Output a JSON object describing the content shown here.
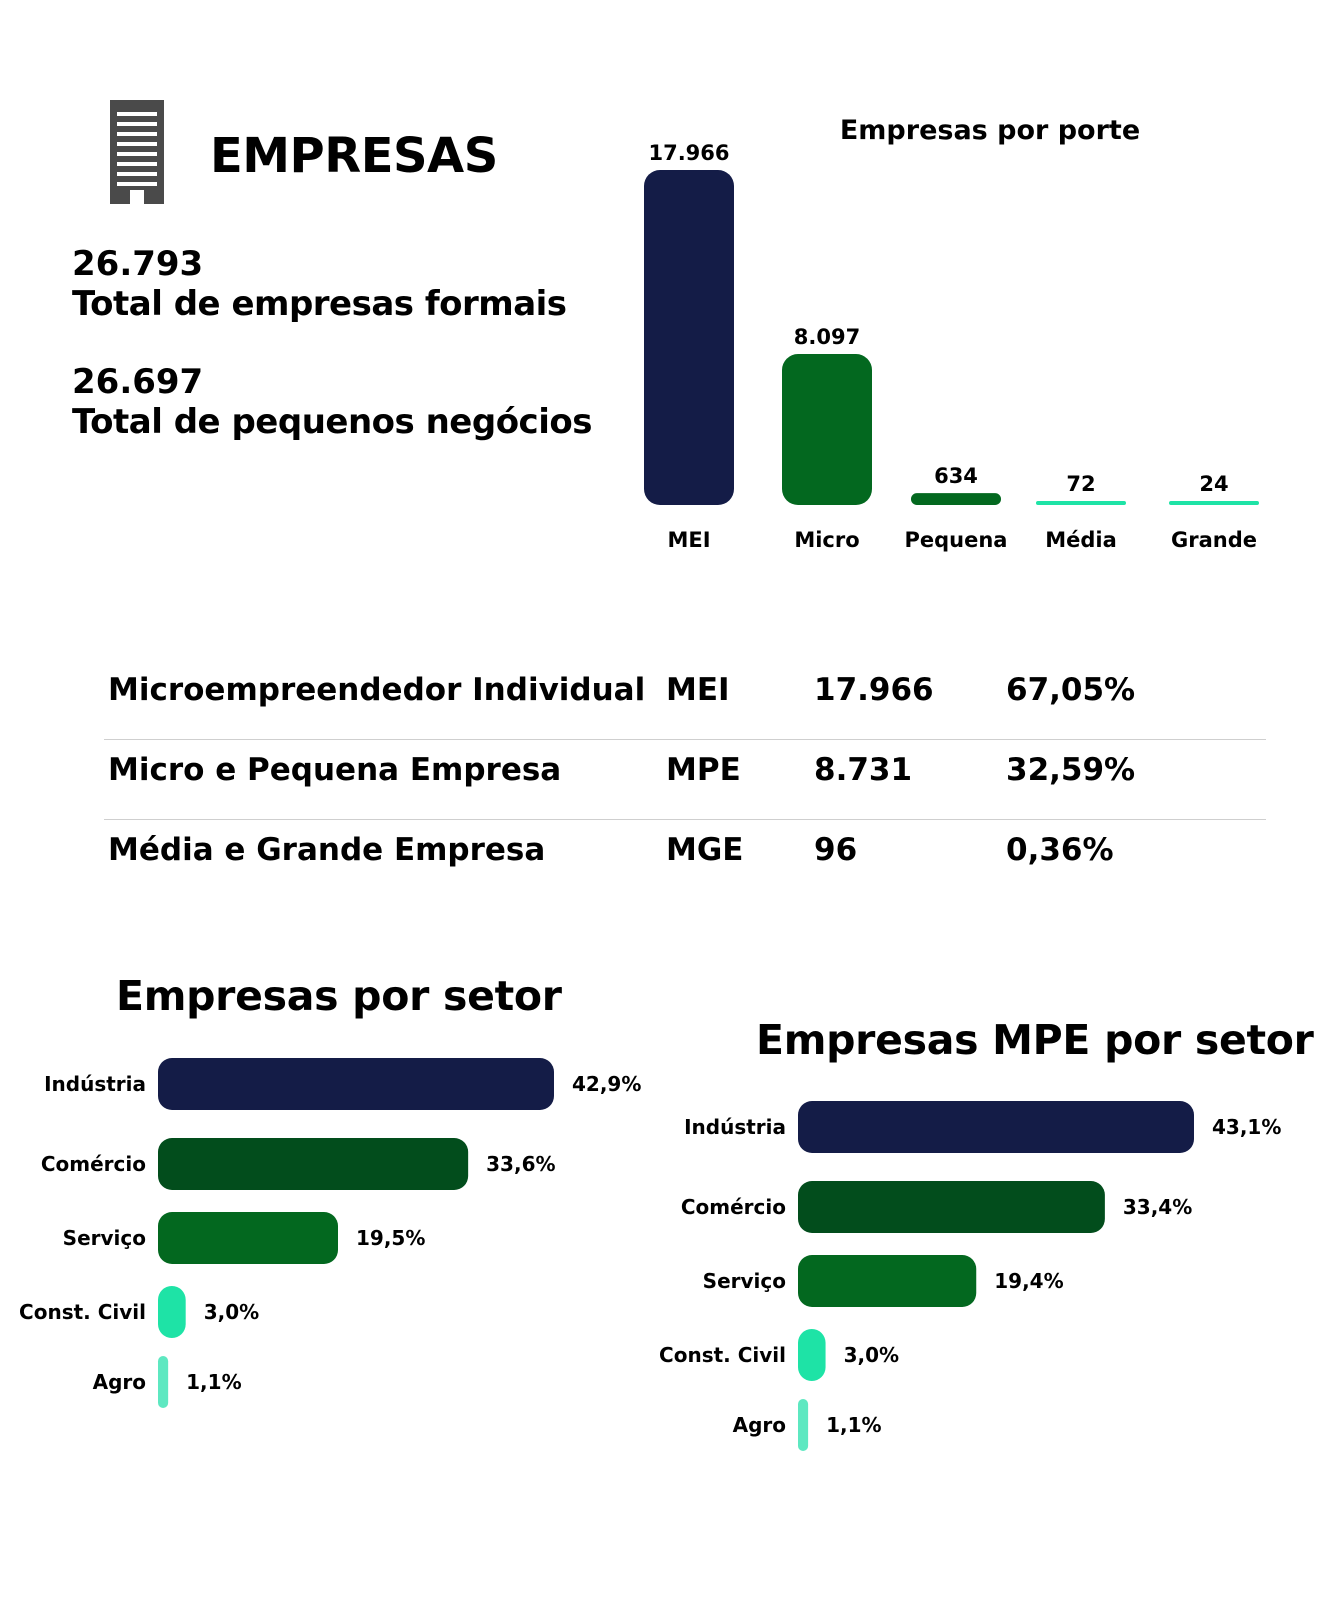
{
  "header": {
    "title": "EMPRESAS",
    "icon": "building-icon"
  },
  "stats": [
    {
      "value": "26.793",
      "label": "Total de empresas formais"
    },
    {
      "value": "26.697",
      "label": "Total de pequenos negócios"
    }
  ],
  "summary_table": {
    "rows": [
      {
        "name": "Microempreendedor Individual",
        "abbr": "MEI",
        "count": "17.966",
        "percent": "67,05%"
      },
      {
        "name": "Micro e Pequena Empresa",
        "abbr": "MPE",
        "count": "8.731",
        "percent": "32,59%"
      },
      {
        "name": "Média e Grande Empresa",
        "abbr": "MGE",
        "count": "96",
        "percent": "0,36%"
      }
    ]
  },
  "colors": {
    "navy": "#141c47",
    "dark_green": "#024d1c",
    "green": "#03681f",
    "mint": "#1ee3a6",
    "light_mint": "#5ee8c1"
  },
  "chart_data": [
    {
      "type": "bar",
      "orientation": "vertical",
      "title": "Empresas por porte",
      "categories": [
        "MEI",
        "Micro",
        "Pequena",
        "Média",
        "Grande"
      ],
      "values": [
        17966,
        8097,
        634,
        72,
        24
      ],
      "value_labels": [
        "17.966",
        "8.097",
        "634",
        "72",
        "24"
      ],
      "bar_colors": [
        "#141c47",
        "#03681f",
        "#03681f",
        "#1ee3a6",
        "#1ee3a6"
      ],
      "ylim": [
        0,
        17966
      ],
      "grid": false,
      "legend": "none"
    },
    {
      "type": "bar",
      "orientation": "horizontal",
      "title": "Empresas por setor",
      "categories": [
        "Indústria",
        "Comércio",
        "Serviço",
        "Const. Civil",
        "Agro"
      ],
      "values": [
        42.9,
        33.6,
        19.5,
        3.0,
        1.1
      ],
      "value_labels": [
        "42,9%",
        "33,6%",
        "19,5%",
        "3,0%",
        "1,1%"
      ],
      "bar_colors": [
        "#141c47",
        "#024d1c",
        "#03681f",
        "#1ee3a6",
        "#5ee8c1"
      ],
      "xlim": [
        0,
        42.9
      ],
      "grid": false,
      "legend": "none"
    },
    {
      "type": "bar",
      "orientation": "horizontal",
      "title": "Empresas MPE por setor",
      "categories": [
        "Indústria",
        "Comércio",
        "Serviço",
        "Const. Civil",
        "Agro"
      ],
      "values": [
        43.1,
        33.4,
        19.4,
        3.0,
        1.1
      ],
      "value_labels": [
        "43,1%",
        "33,4%",
        "19,4%",
        "3,0%",
        "1,1%"
      ],
      "bar_colors": [
        "#141c47",
        "#024d1c",
        "#03681f",
        "#1ee3a6",
        "#5ee8c1"
      ],
      "xlim": [
        0,
        43.1
      ],
      "grid": false,
      "legend": "none"
    }
  ]
}
